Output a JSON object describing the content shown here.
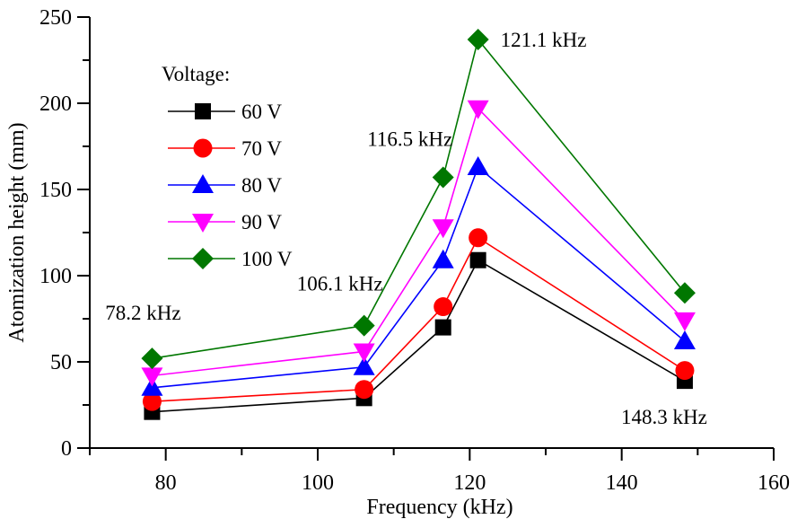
{
  "chart_data": {
    "type": "line",
    "title": "",
    "xlabel": "Frequency (kHz)",
    "ylabel": "Atomization height (mm)",
    "xlim": [
      70,
      160
    ],
    "ylim": [
      0,
      250
    ],
    "xticks": [
      80,
      100,
      120,
      140,
      160
    ],
    "yticks": [
      0,
      50,
      100,
      150,
      200,
      250
    ],
    "grid": false,
    "legend": {
      "title": "Voltage:",
      "position": "top-left"
    },
    "x": [
      78.2,
      106.1,
      116.5,
      121.1,
      148.3
    ],
    "series": [
      {
        "name": "60 V",
        "color": "#000000",
        "marker": "square",
        "values": [
          21,
          29,
          70,
          109,
          39
        ]
      },
      {
        "name": "70 V",
        "color": "#ff0000",
        "marker": "circle",
        "values": [
          27,
          34,
          82,
          122,
          45
        ]
      },
      {
        "name": "80 V",
        "color": "#0000ff",
        "marker": "triangle-up",
        "values": [
          35,
          47,
          109,
          163,
          62
        ]
      },
      {
        "name": "90 V",
        "color": "#ff00ff",
        "marker": "triangle-down",
        "values": [
          42,
          56,
          128,
          197,
          74
        ]
      },
      {
        "name": "100 V",
        "color": "#007700",
        "marker": "diamond",
        "values": [
          52,
          71,
          157,
          237,
          90
        ]
      }
    ],
    "annotations": [
      {
        "text": "78.2 kHz",
        "x": 78.2,
        "y": 63
      },
      {
        "text": "106.1 kHz",
        "x": 106.1,
        "y": 82
      },
      {
        "text": "116.5 kHz",
        "x": 116.5,
        "y": 168
      },
      {
        "text": "121.1 kHz",
        "x": 121.1,
        "y": 237
      },
      {
        "text": "148.3 kHz",
        "x": 148.3,
        "y": 27
      }
    ]
  }
}
